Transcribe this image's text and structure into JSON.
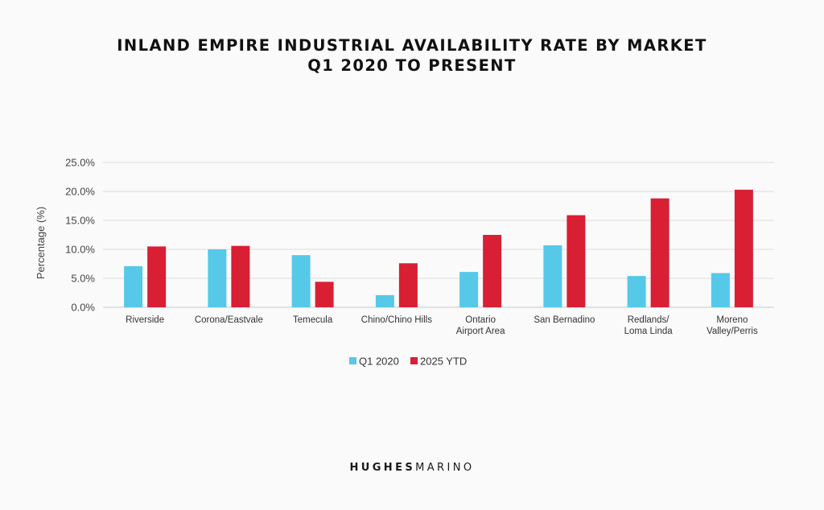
{
  "chart_data": {
    "type": "bar",
    "title": "INLAND EMPIRE INDUSTRIAL AVAILABILITY RATE BY MARKET",
    "subtitle": "Q1 2020 TO PRESENT",
    "xlabel": "",
    "ylabel": "Percentage (%)",
    "ylim": [
      0,
      25
    ],
    "yticks": [
      "0.0%",
      "5.0%",
      "10.0%",
      "15.0%",
      "20.0%",
      "25.0%"
    ],
    "grid": true,
    "legend_position": "bottom-center",
    "categories": [
      [
        "Riverside"
      ],
      [
        "Corona/Eastvale"
      ],
      [
        "Temecula"
      ],
      [
        "Chino/Chino Hills"
      ],
      [
        "Ontario",
        "Airport Area"
      ],
      [
        "San Bernadino"
      ],
      [
        "Redlands/",
        "Loma Linda"
      ],
      [
        "Moreno",
        "Valley/Perris"
      ]
    ],
    "series": [
      {
        "name": "Q1 2020",
        "color": "#56c8e8",
        "values": [
          7.1,
          10.0,
          9.0,
          2.1,
          6.1,
          10.7,
          5.4,
          5.9
        ]
      },
      {
        "name": "2025 YTD",
        "color": "#d91f34",
        "values": [
          10.5,
          10.6,
          4.4,
          7.6,
          12.5,
          15.9,
          18.8,
          20.3
        ]
      }
    ]
  },
  "brand": {
    "part1": "HUGHES",
    "part2": "MARINO"
  }
}
